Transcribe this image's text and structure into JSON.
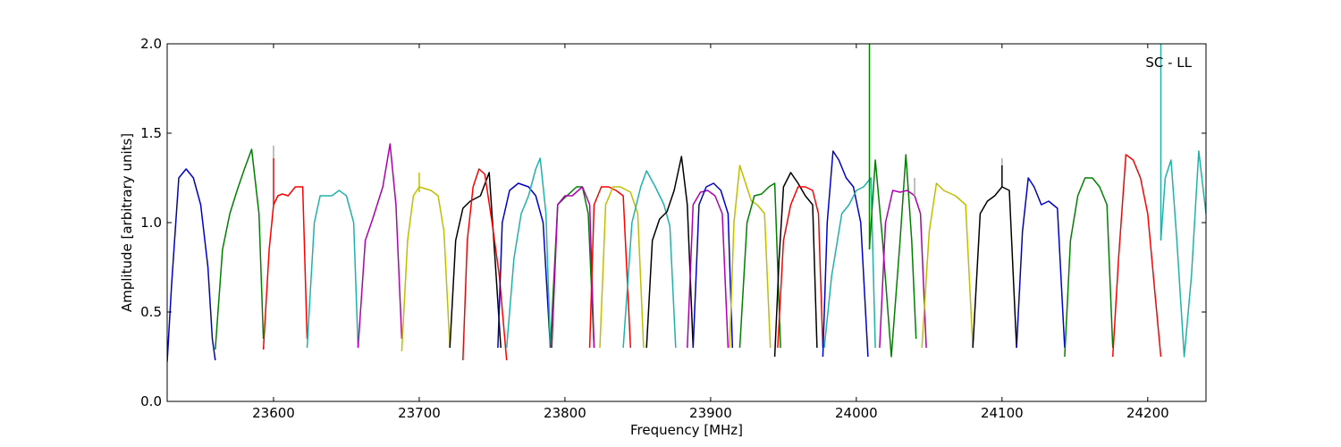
{
  "chart_data": {
    "type": "line",
    "annotation": "SC - LL",
    "xlabel": "Frequency [MHz]",
    "ylabel": "Amplitude [arbitrary units]",
    "xlim": [
      23527,
      24240
    ],
    "ylim": [
      0.0,
      2.0
    ],
    "xticks": [
      23600,
      23700,
      23800,
      23900,
      24000,
      24100,
      24200
    ],
    "yticks": [
      0.0,
      0.5,
      1.0,
      1.5,
      2.0
    ],
    "xtick_labels": [
      "23600",
      "23700",
      "23800",
      "23900",
      "24000",
      "24100",
      "24200"
    ],
    "ytick_labels": [
      "0.0",
      "0.5",
      "1.0",
      "1.5",
      "2.0"
    ],
    "grid": false,
    "series": [
      {
        "color": "#0000cc",
        "x": [
          23527,
          23530,
          23535,
          23540,
          23545,
          23550,
          23555,
          23558,
          23560
        ],
        "y": [
          0.22,
          0.65,
          1.25,
          1.3,
          1.25,
          1.1,
          0.75,
          0.35,
          0.23
        ]
      },
      {
        "color": "#008000",
        "x": [
          23560,
          23565,
          23570,
          23575,
          23580,
          23585,
          23590,
          23593
        ],
        "y": [
          0.29,
          0.85,
          1.05,
          1.18,
          1.3,
          1.41,
          1.05,
          0.35
        ]
      },
      {
        "color": "#ff0000",
        "x": [
          23593,
          23597,
          23600,
          23603,
          23606,
          23610,
          23615,
          23620,
          23623
        ],
        "y": [
          0.29,
          0.85,
          1.1,
          1.15,
          1.16,
          1.15,
          1.2,
          1.2,
          0.35
        ]
      },
      {
        "color": "#20b2aa",
        "x": [
          23623,
          23628,
          23632,
          23640,
          23645,
          23650,
          23655,
          23658
        ],
        "y": [
          0.3,
          1.0,
          1.15,
          1.15,
          1.18,
          1.15,
          1.0,
          0.3
        ]
      },
      {
        "color": "#b000b0",
        "x": [
          23658,
          23663,
          23668,
          23675,
          23680,
          23684,
          23688
        ],
        "y": [
          0.3,
          0.9,
          1.02,
          1.2,
          1.44,
          1.1,
          0.35
        ]
      },
      {
        "color": "#bfbf00",
        "x": [
          23688,
          23692,
          23696,
          23700,
          23708,
          23713,
          23717,
          23721
        ],
        "y": [
          0.28,
          0.9,
          1.15,
          1.2,
          1.18,
          1.15,
          0.95,
          0.3
        ]
      },
      {
        "color": "#000000",
        "x": [
          23721,
          23725,
          23730,
          23735,
          23742,
          23748,
          23752,
          23756
        ],
        "y": [
          0.3,
          0.9,
          1.08,
          1.12,
          1.15,
          1.28,
          0.8,
          0.3
        ]
      },
      {
        "color": "#ff0000",
        "x": [
          23730,
          23733,
          23737,
          23741,
          23745,
          23750,
          23755,
          23760
        ],
        "y": [
          0.23,
          0.9,
          1.2,
          1.3,
          1.27,
          1.0,
          0.7,
          0.23
        ]
      },
      {
        "color": "#0000cc",
        "x": [
          23754,
          23757,
          23762,
          23768,
          23775,
          23780,
          23785,
          23790
        ],
        "y": [
          0.3,
          1.0,
          1.18,
          1.22,
          1.2,
          1.15,
          1.0,
          0.3
        ]
      },
      {
        "color": "#20b2aa",
        "x": [
          23760,
          23765,
          23770,
          23775,
          23780,
          23783,
          23787,
          23790
        ],
        "y": [
          0.3,
          0.8,
          1.05,
          1.15,
          1.3,
          1.36,
          1.05,
          0.3
        ]
      },
      {
        "color": "#008000",
        "x": [
          23790,
          23795,
          23800,
          23808,
          23812,
          23816,
          23820
        ],
        "y": [
          0.3,
          1.1,
          1.14,
          1.2,
          1.2,
          1.05,
          0.3
        ]
      },
      {
        "color": "#b000b0",
        "x": [
          23791,
          23795,
          23800,
          23805,
          23812,
          23817,
          23820
        ],
        "y": [
          0.3,
          1.1,
          1.15,
          1.15,
          1.2,
          1.1,
          0.3
        ]
      },
      {
        "color": "#ff0000",
        "x": [
          23817,
          23820,
          23825,
          23830,
          23835,
          23840,
          23845
        ],
        "y": [
          0.3,
          1.1,
          1.2,
          1.2,
          1.18,
          1.15,
          0.3
        ]
      },
      {
        "color": "#bfbf00",
        "x": [
          23824,
          23828,
          23833,
          23838,
          23845,
          23850,
          23854
        ],
        "y": [
          0.3,
          1.1,
          1.2,
          1.2,
          1.17,
          1.05,
          0.3
        ]
      },
      {
        "color": "#20b2aa",
        "x": [
          23840,
          23846,
          23852,
          23856,
          23862,
          23868,
          23872,
          23876
        ],
        "y": [
          0.3,
          1.0,
          1.2,
          1.29,
          1.2,
          1.1,
          0.98,
          0.3
        ]
      },
      {
        "color": "#000000",
        "x": [
          23856,
          23860,
          23865,
          23870,
          23875,
          23880,
          23884,
          23888
        ],
        "y": [
          0.3,
          0.9,
          1.02,
          1.06,
          1.18,
          1.37,
          1.1,
          0.3
        ]
      },
      {
        "color": "#b000b0",
        "x": [
          23884,
          23888,
          23893,
          23898,
          23903,
          23908,
          23912
        ],
        "y": [
          0.3,
          1.1,
          1.17,
          1.18,
          1.15,
          1.05,
          0.3
        ]
      },
      {
        "color": "#0000cc",
        "x": [
          23888,
          23892,
          23897,
          23902,
          23907,
          23912,
          23915
        ],
        "y": [
          0.3,
          1.1,
          1.2,
          1.22,
          1.18,
          1.05,
          0.3
        ]
      },
      {
        "color": "#bfbf00",
        "x": [
          23913,
          23916,
          23920,
          23924,
          23928,
          23932,
          23937,
          23941
        ],
        "y": [
          0.3,
          1.0,
          1.32,
          1.22,
          1.12,
          1.1,
          1.05,
          0.3
        ]
      },
      {
        "color": "#008000",
        "x": [
          23920,
          23925,
          23930,
          23935,
          23940,
          23944,
          23948
        ],
        "y": [
          0.3,
          1.0,
          1.15,
          1.16,
          1.2,
          1.22,
          0.3
        ]
      },
      {
        "color": "#000000",
        "x": [
          23944,
          23947,
          23950,
          23955,
          23960,
          23965,
          23970,
          23973
        ],
        "y": [
          0.25,
          0.8,
          1.2,
          1.28,
          1.22,
          1.15,
          1.1,
          0.3
        ]
      },
      {
        "color": "#ff0000",
        "x": [
          23946,
          23950,
          23955,
          23960,
          23965,
          23970,
          23974,
          23977
        ],
        "y": [
          0.3,
          0.9,
          1.1,
          1.2,
          1.2,
          1.18,
          1.05,
          0.3
        ]
      },
      {
        "color": "#0000cc",
        "x": [
          23977,
          23980,
          23984,
          23988,
          23993,
          23998,
          24003,
          24008
        ],
        "y": [
          0.25,
          1.0,
          1.4,
          1.35,
          1.25,
          1.2,
          1.0,
          0.25
        ]
      },
      {
        "color": "#20b2aa",
        "x": [
          23978,
          23983,
          23990,
          23995,
          24000,
          24005,
          24010,
          24013
        ],
        "y": [
          0.3,
          0.7,
          1.05,
          1.1,
          1.18,
          1.2,
          1.25,
          0.3
        ]
      },
      {
        "color": "#008000",
        "x": [
          24009,
          24013,
          24018,
          24024,
          24030,
          24034,
          24038,
          24041
        ],
        "y": [
          0.85,
          1.35,
          0.9,
          0.25,
          0.9,
          1.38,
          0.9,
          0.35
        ]
      },
      {
        "color": "#b000b0",
        "x": [
          24016,
          24020,
          24025,
          24030,
          24035,
          24040,
          24044,
          24048
        ],
        "y": [
          0.3,
          1.0,
          1.18,
          1.17,
          1.18,
          1.15,
          1.05,
          0.3
        ]
      },
      {
        "color": "#bfbf00",
        "x": [
          24045,
          24050,
          24055,
          24060,
          24068,
          24075,
          24080
        ],
        "y": [
          0.3,
          0.95,
          1.22,
          1.18,
          1.15,
          1.1,
          0.3
        ]
      },
      {
        "color": "#000000",
        "x": [
          24080,
          24085,
          24090,
          24095,
          24100,
          24105,
          24110
        ],
        "y": [
          0.3,
          1.05,
          1.12,
          1.15,
          1.2,
          1.18,
          0.3
        ]
      },
      {
        "color": "#0000cc",
        "x": [
          24110,
          24114,
          24118,
          24122,
          24127,
          24132,
          24138,
          24143
        ],
        "y": [
          0.3,
          0.95,
          1.25,
          1.2,
          1.1,
          1.12,
          1.08,
          0.3
        ]
      },
      {
        "color": "#008000",
        "x": [
          24143,
          24147,
          24152,
          24157,
          24162,
          24167,
          24172,
          24176
        ],
        "y": [
          0.25,
          0.9,
          1.15,
          1.25,
          1.25,
          1.2,
          1.1,
          0.3
        ]
      },
      {
        "color": "#ff0000",
        "x": [
          24176,
          24180,
          24185,
          24190,
          24195,
          24200,
          24205,
          24209
        ],
        "y": [
          0.25,
          0.8,
          1.38,
          1.35,
          1.25,
          1.05,
          0.6,
          0.25
        ]
      },
      {
        "color": "#20b2aa",
        "x": [
          24209,
          24212,
          24216,
          24220,
          24225,
          24230,
          24235,
          24240
        ],
        "y": [
          0.9,
          1.25,
          1.35,
          0.9,
          0.25,
          0.7,
          1.4,
          1.05
        ]
      }
    ],
    "spikes": [
      {
        "color": "#ff0000",
        "x": 23600,
        "y0": 1.1,
        "y1": 1.36
      },
      {
        "color": "#aaaaaa",
        "x": 23600,
        "y0": 1.36,
        "y1": 1.43
      },
      {
        "color": "#bfbf00",
        "x": 23700,
        "y0": 1.17,
        "y1": 1.28
      },
      {
        "color": "#008000",
        "x": 24009,
        "y0": 0.85,
        "y1": 2.0
      },
      {
        "color": "#aaaaaa",
        "x": 24040,
        "y0": 1.15,
        "y1": 1.25
      },
      {
        "color": "#000000",
        "x": 24100,
        "y0": 1.2,
        "y1": 1.32
      },
      {
        "color": "#aaaaaa",
        "x": 24100,
        "y0": 1.32,
        "y1": 1.36
      },
      {
        "color": "#20b2aa",
        "x": 24209,
        "y0": 0.9,
        "y1": 2.0
      }
    ]
  }
}
